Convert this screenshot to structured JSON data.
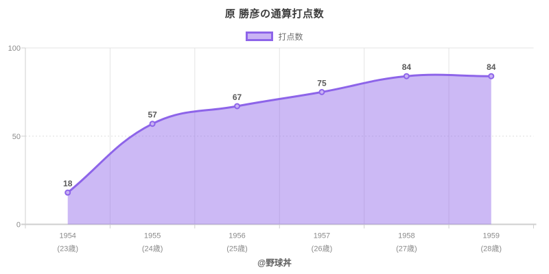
{
  "title": "原 勝彦の通算打点数",
  "legend": {
    "label": "打点数"
  },
  "footer": "@野球丼",
  "colors": {
    "line": "#8d64e9",
    "area_fill": "rgba(141,100,233,0.45)",
    "marker_fill": "#c9b3f4",
    "grid": "#e3e3e3",
    "grid_dotted": "#dedede",
    "axis": "#cfcfcf",
    "tick_label": "#8a8a8a",
    "data_label": "#5a5a5a"
  },
  "chart_data": {
    "type": "area",
    "title": "原 勝彦の通算打点数",
    "categories": [
      "1954",
      "1955",
      "1956",
      "1957",
      "1958",
      "1959"
    ],
    "category_sublabels": [
      "(23歳)",
      "(24歳)",
      "(25歳)",
      "(26歳)",
      "(27歳)",
      "(28歳)"
    ],
    "series": [
      {
        "name": "打点数",
        "values": [
          18,
          57,
          67,
          75,
          84,
          84
        ]
      }
    ],
    "ylim": [
      0,
      100
    ],
    "yticks": [
      0,
      50,
      100
    ],
    "legend_position": "top",
    "grid": true,
    "smooth": true,
    "point_labels": true
  }
}
